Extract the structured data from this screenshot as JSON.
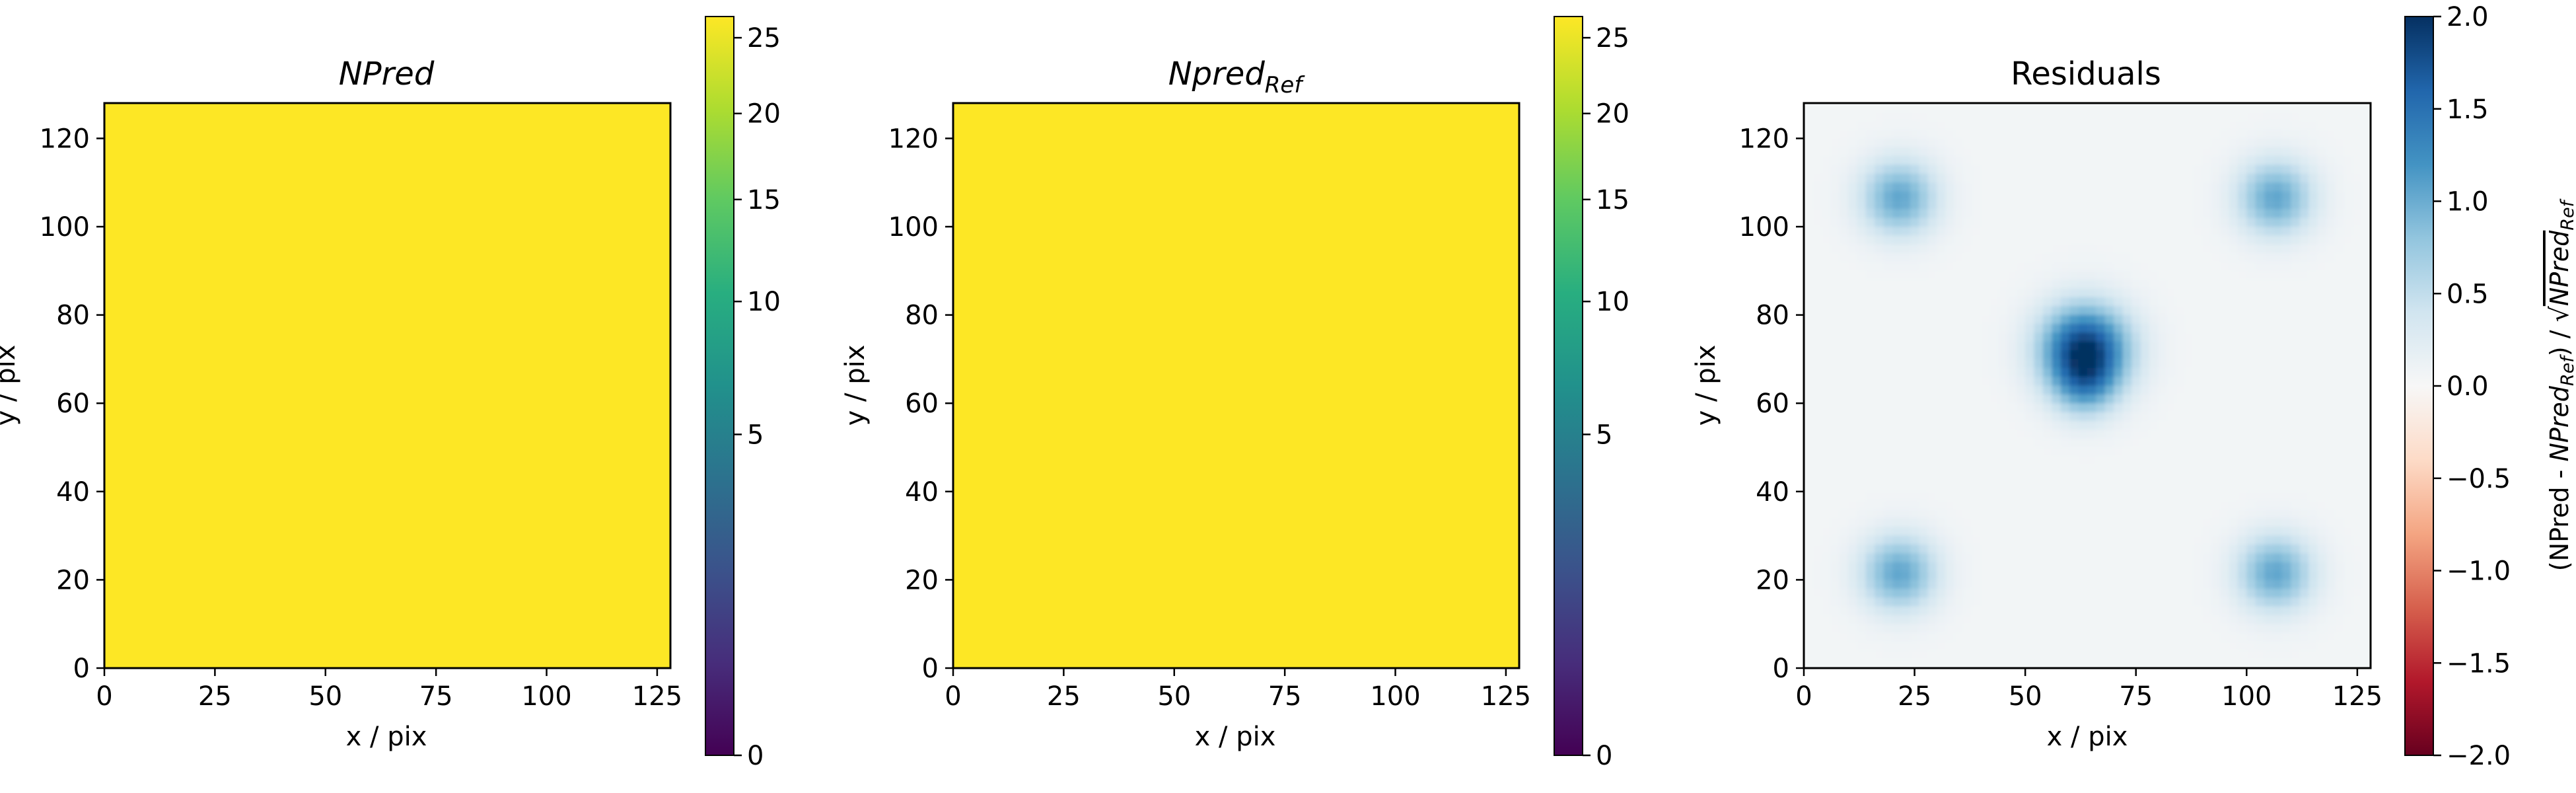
{
  "figure": {
    "colors": {
      "uniform_fill": "#fde725",
      "axes": "#000000",
      "background": "#ffffff"
    }
  },
  "chart_data": [
    {
      "type": "heatmap",
      "title_main": "NPred",
      "title_sub": "",
      "xlabel": "x / pix",
      "ylabel": "y / pix",
      "xlim": [
        0,
        128
      ],
      "ylim": [
        0,
        128
      ],
      "xticks": [
        0,
        25,
        50,
        75,
        100,
        125
      ],
      "yticks": [
        0,
        20,
        40,
        60,
        80,
        100,
        120
      ],
      "value": 25.8,
      "colormap": "viridis",
      "colorbar": {
        "scale": "sqrt",
        "range": [
          0,
          26.5
        ],
        "ticks": [
          0,
          5,
          10,
          15,
          20,
          25
        ],
        "label": ""
      }
    },
    {
      "type": "heatmap",
      "title_main": "Npred",
      "title_sub": "Ref",
      "xlabel": "x / pix",
      "ylabel": "y / pix",
      "xlim": [
        0,
        128
      ],
      "ylim": [
        0,
        128
      ],
      "xticks": [
        0,
        25,
        50,
        75,
        100,
        125
      ],
      "yticks": [
        0,
        20,
        40,
        60,
        80,
        100,
        120
      ],
      "value": 25.8,
      "colormap": "viridis",
      "colorbar": {
        "scale": "sqrt",
        "range": [
          0,
          26.5
        ],
        "ticks": [
          0,
          5,
          10,
          15,
          20,
          25
        ],
        "label": ""
      }
    },
    {
      "type": "heatmap",
      "title_main": "Residuals",
      "title_sub": "",
      "xlabel": "x / pix",
      "ylabel": "y / pix",
      "xlim": [
        0,
        128
      ],
      "ylim": [
        0,
        128
      ],
      "xticks": [
        0,
        25,
        50,
        75,
        100,
        125
      ],
      "yticks": [
        0,
        20,
        40,
        60,
        80,
        100,
        120
      ],
      "background_value": 0.05,
      "blobs": [
        {
          "x": 21.5,
          "y": 106.5,
          "sigma": 6,
          "peak": 1.0
        },
        {
          "x": 106.5,
          "y": 106.5,
          "sigma": 6,
          "peak": 1.0
        },
        {
          "x": 21.5,
          "y": 21.5,
          "sigma": 6,
          "peak": 1.0
        },
        {
          "x": 106.5,
          "y": 21.5,
          "sigma": 6,
          "peak": 1.0
        },
        {
          "x": 63.5,
          "y": 72,
          "sigma": 7,
          "peak": 1.9
        },
        {
          "x": 63.5,
          "y": 63.5,
          "sigma": 5,
          "peak": 0.6
        }
      ],
      "colormap": "RdBu",
      "colorbar": {
        "scale": "linear",
        "range": [
          -2.0,
          2.0
        ],
        "ticks": [
          -2.0,
          -1.5,
          -1.0,
          -0.5,
          0.0,
          0.5,
          1.0,
          1.5,
          2.0
        ],
        "tick_labels": [
          "−2.0",
          "−1.5",
          "−1.0",
          "−0.5",
          "0.0",
          "0.5",
          "1.0",
          "1.5",
          "2.0"
        ],
        "label_parts": [
          "(NPred - ",
          "NPred",
          "Ref",
          ") / √",
          "NPred",
          "Ref"
        ]
      }
    }
  ]
}
